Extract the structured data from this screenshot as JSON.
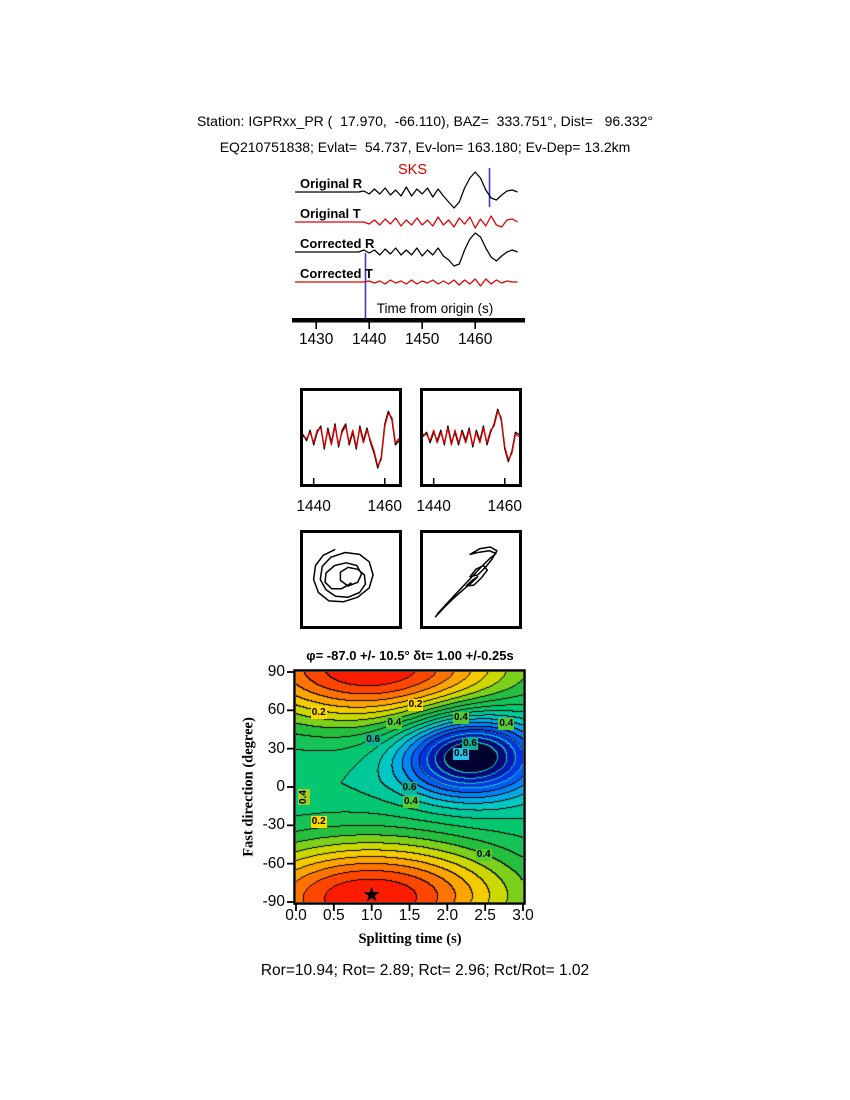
{
  "header": {
    "line1": "Station: IGPRxx_PR (  17.970,  -66.110), BAZ=  333.751°, Dist=   96.332°",
    "line2": "EQ210751838; Evlat=  54.737, Ev-lon= 163.180; Ev-Dep= 13.2km"
  },
  "footer": {
    "stats": "Ror=10.94; Rot= 2.89; Rct= 2.96; Rct/Rot= 1.02"
  },
  "chart_data": {
    "type": "composite",
    "waveform_panel": {
      "xlabel": "Time from origin (s)",
      "t_start": 1426,
      "t_step": 1,
      "ticks": [
        1430,
        1440,
        1450,
        1460
      ],
      "phase_label": "SKS",
      "marker_color": "#3b3bcc",
      "window_markers": [
        1439.3,
        1462.7
      ],
      "items": [
        {
          "label": "Original R",
          "color": "#000000",
          "values": [
            0,
            0,
            0,
            0,
            0,
            0,
            0,
            0,
            0,
            0,
            0,
            0,
            0,
            1,
            -2,
            3,
            -2,
            4,
            -3,
            2,
            -4,
            5,
            -4,
            3,
            -2,
            4,
            -5,
            3,
            -4,
            -10,
            -16,
            -10,
            4,
            14,
            20,
            14,
            2,
            -6,
            -8,
            -3,
            1,
            2,
            0
          ]
        },
        {
          "label": "Original T",
          "color": "#dd0000",
          "values": [
            0,
            0,
            0,
            0,
            0,
            0,
            0,
            0,
            0,
            0,
            0,
            0,
            0,
            0,
            -2,
            2,
            -3,
            3,
            -2,
            4,
            -4,
            2,
            -3,
            4,
            -3,
            2,
            -4,
            5,
            -3,
            2,
            -5,
            4,
            -2,
            5,
            -6,
            3,
            -4,
            6,
            -3,
            -5,
            2,
            3,
            0
          ]
        },
        {
          "label": "Corrected R",
          "color": "#000000",
          "values": [
            0,
            0,
            0,
            0,
            0,
            0,
            0,
            0,
            0,
            0,
            0,
            0,
            0,
            2,
            -1,
            2,
            -3,
            3,
            -2,
            4,
            -3,
            2,
            -3,
            4,
            -4,
            2,
            -3,
            4,
            -4,
            -8,
            -14,
            -12,
            2,
            13,
            19,
            15,
            4,
            -5,
            -9,
            -4,
            0,
            2,
            0
          ]
        },
        {
          "label": "Corrected T",
          "color": "#dd0000",
          "values": [
            0,
            0,
            0,
            0,
            0,
            0,
            0,
            0,
            0,
            0,
            0,
            0,
            0,
            0,
            1,
            -1,
            1,
            -2,
            2,
            -1,
            1,
            -2,
            2,
            -2,
            1,
            -1,
            2,
            -2,
            1,
            -2,
            2,
            -3,
            2,
            -2,
            3,
            -4,
            3,
            -2,
            2,
            -1,
            1,
            0,
            0
          ]
        }
      ]
    },
    "compare_boxes": {
      "t_start": 1437,
      "t_end": 1464,
      "boxes": [
        {
          "ticks": [
            1440,
            1460
          ],
          "black": [
            1,
            -2,
            3,
            -4,
            2,
            5,
            -6,
            4,
            -3,
            6,
            -5,
            3,
            6,
            -4,
            2,
            -6,
            5,
            -2,
            4,
            -3,
            -8,
            -15,
            -10,
            6,
            12,
            8,
            -4,
            -2
          ],
          "red": [
            0,
            -1,
            2,
            -3,
            3,
            4,
            -5,
            3,
            -4,
            5,
            -4,
            2,
            5,
            -3,
            3,
            -5,
            4,
            -3,
            3,
            -2,
            -7,
            -14,
            -11,
            5,
            11,
            9,
            -3,
            -1
          ]
        },
        {
          "ticks": [
            1440,
            1460
          ],
          "black": [
            0,
            2,
            -3,
            2,
            -2,
            3,
            -4,
            5,
            -3,
            2,
            -4,
            3,
            -2,
            4,
            -5,
            3,
            -2,
            5,
            -4,
            2,
            6,
            13,
            8,
            -6,
            -12,
            -7,
            2,
            1
          ],
          "red": [
            1,
            1,
            -2,
            3,
            -3,
            2,
            -3,
            4,
            -4,
            3,
            -3,
            2,
            -3,
            3,
            -4,
            2,
            -3,
            4,
            -3,
            3,
            5,
            12,
            9,
            -5,
            -11,
            -8,
            1,
            0
          ]
        }
      ]
    },
    "particle_motion": {
      "boxes": [
        {
          "points": [
            [
              50,
              54
            ],
            [
              40,
              60
            ],
            [
              30,
              60
            ],
            [
              23,
              53
            ],
            [
              24,
              43
            ],
            [
              33,
              35
            ],
            [
              45,
              32
            ],
            [
              56,
              35
            ],
            [
              61,
              44
            ],
            [
              57,
              53
            ],
            [
              47,
              57
            ],
            [
              39,
              51
            ],
            [
              39,
              42
            ],
            [
              47,
              37
            ],
            [
              57,
              39
            ],
            [
              64,
              45
            ],
            [
              65,
              55
            ],
            [
              59,
              64
            ],
            [
              47,
              69
            ],
            [
              34,
              68
            ],
            [
              24,
              61
            ],
            [
              18,
              50
            ],
            [
              20,
              36
            ],
            [
              29,
              26
            ],
            [
              44,
              21
            ],
            [
              59,
              23
            ],
            [
              69,
              31
            ],
            [
              73,
              45
            ],
            [
              69,
              59
            ],
            [
              57,
              69
            ],
            [
              42,
              74
            ],
            [
              27,
              73
            ],
            [
              16,
              64
            ],
            [
              11,
              50
            ],
            [
              13,
              35
            ],
            [
              21,
              24
            ],
            [
              33,
              18
            ]
          ]
        },
        {
          "points": [
            [
              13,
              90
            ],
            [
              23,
              79
            ],
            [
              33,
              69
            ],
            [
              43,
              60
            ],
            [
              51,
              53
            ],
            [
              57,
              47
            ],
            [
              51,
              51
            ],
            [
              45,
              57
            ],
            [
              53,
              56
            ],
            [
              61,
              48
            ],
            [
              67,
              40
            ],
            [
              63,
              35
            ],
            [
              55,
              39
            ],
            [
              49,
              47
            ],
            [
              57,
              45
            ],
            [
              65,
              37
            ],
            [
              72,
              28
            ],
            [
              77,
              19
            ],
            [
              70,
              15
            ],
            [
              59,
              17
            ],
            [
              49,
              23
            ],
            [
              57,
              21
            ],
            [
              69,
              19
            ],
            [
              76,
              22
            ],
            [
              70,
              27
            ],
            [
              61,
              36
            ],
            [
              52,
              46
            ],
            [
              42,
              57
            ],
            [
              32,
              68
            ],
            [
              22,
              79
            ],
            [
              15,
              87
            ]
          ]
        }
      ]
    },
    "splitting_map": {
      "title": "φ= -87.0 +/- 10.5° δt= 1.00 +/-0.25s",
      "xlabel": "Splitting time (s)",
      "ylabel": "Fast direction (degree)",
      "x_range": [
        0,
        3
      ],
      "y_range": [
        -90,
        90
      ],
      "xticks": [
        "0.0",
        "0.5",
        "1.0",
        "1.5",
        "2.0",
        "2.5",
        "3.0"
      ],
      "yticks": [
        90,
        60,
        30,
        0,
        -30,
        -60,
        -90
      ],
      "best_solution": {
        "phi_deg": -87.0,
        "phi_err": 10.5,
        "dt_s": 1.0,
        "dt_err": 0.25
      },
      "star": {
        "dt": 1.0,
        "phi": -87
      },
      "energy_model": {
        "base": 0.55,
        "well_amp": 0.5,
        "well_phi0": -87,
        "well_dt0": 1.0,
        "well_wphi": 45,
        "well_wdt": 1.9,
        "peak_amp": 0.5,
        "peak_phi": 25,
        "peak_dt": 2.3,
        "peak_wphi": 32,
        "peak_wdt": 0.9,
        "contour_interval": 0.05
      },
      "annotations": [
        {
          "v": "0.2",
          "dt": 0.3,
          "phi": 58,
          "bg": "#ffd800",
          "rot": 0
        },
        {
          "v": "0.2",
          "dt": 1.58,
          "phi": 64,
          "bg": "#ffd800",
          "rot": 0
        },
        {
          "v": "0.4",
          "dt": 1.3,
          "phi": 50,
          "bg": "#55cc33",
          "rot": 0
        },
        {
          "v": "0.4",
          "dt": 2.18,
          "phi": 54,
          "bg": "#55cc33",
          "rot": 0
        },
        {
          "v": "0.4",
          "dt": 2.78,
          "phi": 49,
          "bg": "#55cc33",
          "rot": 0
        },
        {
          "v": "0.6",
          "dt": 1.02,
          "phi": 37,
          "bg": "#10b090",
          "rot": 0
        },
        {
          "v": "0.6",
          "dt": 2.3,
          "phi": 34,
          "bg": "#10b090",
          "rot": 0
        },
        {
          "v": "0.8",
          "dt": 2.18,
          "phi": 26,
          "bg": "#22c4e8",
          "rot": 0
        },
        {
          "v": "0.6",
          "dt": 1.5,
          "phi": -1,
          "bg": "#10b090",
          "rot": 0
        },
        {
          "v": "0.4",
          "dt": 1.52,
          "phi": -12,
          "bg": "#55cc33",
          "rot": 0
        },
        {
          "v": "0.2",
          "dt": 0.3,
          "phi": -27,
          "bg": "#ffd800",
          "rot": 0
        },
        {
          "v": "0.4",
          "dt": 2.48,
          "phi": -53,
          "bg": "#55cc33",
          "rot": 0
        },
        {
          "v": "0.4",
          "dt": 0.1,
          "phi": -8,
          "bg": "#aacc22",
          "rot": -90
        }
      ]
    }
  }
}
